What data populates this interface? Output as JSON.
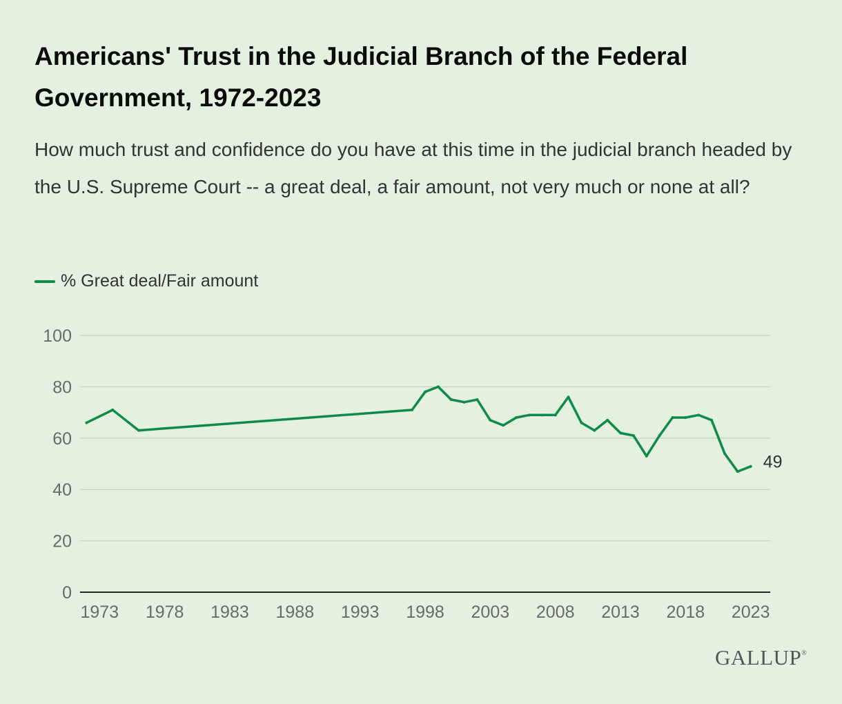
{
  "header": {
    "title": "Americans' Trust in the Judicial Branch of the Federal Government, 1972-2023",
    "subtitle": "How much trust and confidence do you have at this time in the judicial branch headed by the U.S. Supreme Court -- a great deal, a fair amount, not very much or none at all?"
  },
  "legend": {
    "label": "% Great deal/Fair amount"
  },
  "brand": {
    "logo": "GALLUP",
    "mark": "®"
  },
  "colors": {
    "background": "#e4f1e0",
    "line": "#0f8a47",
    "grid": "#c9d4c6",
    "axis": "#222222"
  },
  "chart_data": {
    "type": "line",
    "title": "Americans' Trust in the Judicial Branch of the Federal Government, 1972-2023",
    "xlabel": "",
    "ylabel": "",
    "ylim": [
      0,
      100
    ],
    "yticks": [
      0,
      20,
      40,
      60,
      80,
      100
    ],
    "xticks": [
      1973,
      1978,
      1983,
      1988,
      1993,
      1998,
      2003,
      2008,
      2013,
      2018,
      2023
    ],
    "grid": true,
    "legend_position": "top-left",
    "end_label": "49",
    "series": [
      {
        "name": "% Great deal/Fair amount",
        "x": [
          1972,
          1974,
          1976,
          1997,
          1998,
          1999,
          2000,
          2001,
          2002,
          2003,
          2004,
          2005,
          2006,
          2007,
          2008,
          2009,
          2010,
          2011,
          2012,
          2013,
          2014,
          2015,
          2016,
          2017,
          2018,
          2019,
          2020,
          2021,
          2022,
          2023
        ],
        "values": [
          66,
          71,
          63,
          71,
          78,
          80,
          75,
          74,
          75,
          67,
          65,
          68,
          69,
          69,
          69,
          76,
          66,
          63,
          67,
          62,
          61,
          53,
          61,
          68,
          68,
          69,
          67,
          54,
          47,
          49
        ]
      }
    ]
  }
}
